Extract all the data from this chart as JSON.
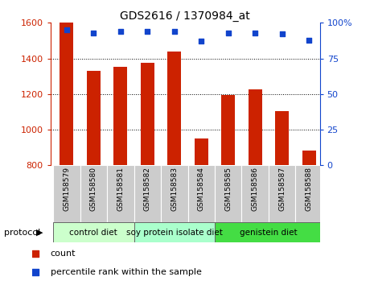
{
  "title": "GDS2616 / 1370984_at",
  "samples": [
    "GSM158579",
    "GSM158580",
    "GSM158581",
    "GSM158582",
    "GSM158583",
    "GSM158584",
    "GSM158585",
    "GSM158586",
    "GSM158587",
    "GSM158588"
  ],
  "counts": [
    1600,
    1330,
    1355,
    1375,
    1440,
    950,
    1195,
    1225,
    1105,
    885
  ],
  "percentile_ranks": [
    95,
    93,
    94,
    94,
    94,
    87,
    93,
    93,
    92,
    88
  ],
  "ylim_left": [
    800,
    1600
  ],
  "ylim_right": [
    0,
    100
  ],
  "yticks_left": [
    800,
    1000,
    1200,
    1400,
    1600
  ],
  "yticks_right": [
    0,
    25,
    50,
    75,
    100
  ],
  "groups": [
    {
      "label": "control diet",
      "start": 0,
      "end": 3
    },
    {
      "label": "soy protein isolate diet",
      "start": 3,
      "end": 6
    },
    {
      "label": "genistein diet",
      "start": 6,
      "end": 10
    }
  ],
  "group_colors": [
    "#ccffcc",
    "#aaffcc",
    "#44dd44"
  ],
  "bar_color": "#cc2200",
  "dot_color": "#1144cc",
  "bar_width": 0.5,
  "background_color": "#ffffff",
  "xlim": [
    -0.6,
    9.4
  ]
}
